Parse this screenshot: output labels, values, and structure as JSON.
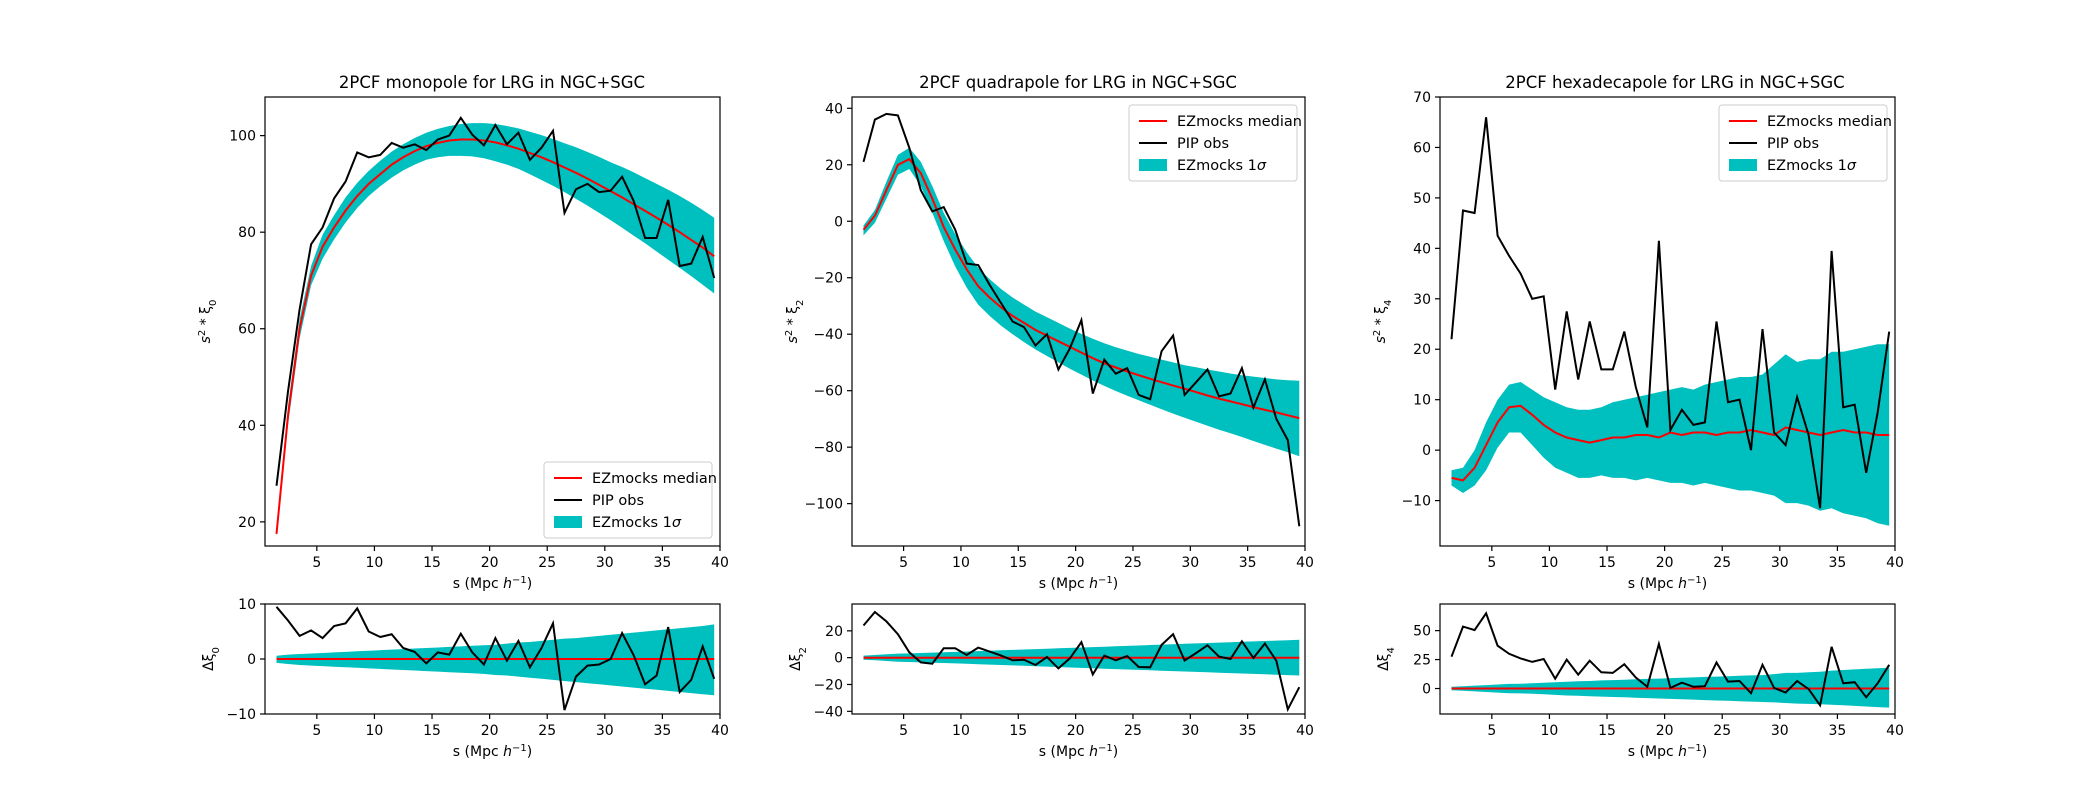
{
  "colors": {
    "median": "#ff0000",
    "obs": "#000000",
    "band": "#00bfbf"
  },
  "legend": {
    "median": "EZmocks median",
    "obs": "PIP obs",
    "band_prefix": "EZmocks 1",
    "band_sigma": "σ"
  },
  "xlabel_prefix": "s (Mpc ",
  "xlabel_h": "h",
  "xlabel_exp": "−1",
  "xlabel_suffix": ")",
  "chart_data": [
    {
      "type": "line",
      "title": "2PCF monopole for LRG in NGC+SGC",
      "ylabel_main": "s",
      "ylabel_sup": "2",
      "ylabel_mid": " * ξ",
      "ylabel_sub": "0",
      "xlim": [
        0.5,
        40
      ],
      "ylim": [
        15,
        108
      ],
      "xticks": [
        5,
        10,
        15,
        20,
        25,
        30,
        35,
        40
      ],
      "yticks": [
        20,
        40,
        60,
        80,
        100
      ],
      "legend_position": "lower-right",
      "x": [
        1.5,
        2.5,
        3.5,
        4.5,
        5.5,
        6.5,
        7.5,
        8.5,
        9.5,
        10.5,
        11.5,
        12.5,
        13.5,
        14.5,
        15.5,
        16.5,
        17.5,
        18.5,
        19.5,
        20.5,
        21.5,
        22.5,
        23.5,
        24.5,
        25.5,
        26.5,
        27.5,
        28.5,
        29.5,
        30.5,
        31.5,
        32.5,
        33.5,
        34.5,
        35.5,
        36.5,
        37.5,
        38.5,
        39.5
      ],
      "median": [
        17.5,
        42,
        60,
        71,
        77,
        81,
        84.5,
        87.5,
        90,
        92,
        94,
        95.5,
        96.8,
        97.8,
        98.5,
        99,
        99.2,
        99.2,
        99,
        98.6,
        98,
        97.3,
        96.4,
        95.5,
        94.5,
        93.4,
        92.3,
        91.1,
        89.8,
        88.5,
        87.2,
        85.8,
        84.4,
        83,
        81.5,
        80,
        78.4,
        76.8,
        75
      ],
      "band_lo": [
        17,
        40,
        58,
        69,
        74.5,
        78.5,
        82,
        85,
        87.5,
        89.5,
        91.3,
        92.8,
        94,
        95,
        95.5,
        95.8,
        95.8,
        95.7,
        95.3,
        94.7,
        94,
        93.1,
        92,
        90.8,
        89.6,
        88.3,
        86.9,
        85.5,
        84,
        82.5,
        80.9,
        79.3,
        77.7,
        76,
        74.3,
        72.6,
        70.9,
        69.1,
        67.3
      ],
      "band_hi": [
        18,
        44,
        62,
        73,
        79.5,
        83.5,
        87.2,
        90.2,
        92.7,
        94.8,
        96.7,
        98.2,
        99.5,
        100.6,
        101.4,
        102,
        102.4,
        102.6,
        102.6,
        102.4,
        102,
        101.5,
        100.8,
        100.1,
        99.3,
        98.4,
        97.6,
        96.6,
        95.6,
        94.5,
        93.5,
        92.4,
        91.2,
        90,
        88.8,
        87.5,
        86.1,
        84.6,
        83
      ],
      "obs": [
        27.5,
        47,
        64,
        77.5,
        81,
        87,
        90.5,
        96.5,
        95.5,
        96,
        98.5,
        97.5,
        98.2,
        97,
        99.2,
        100,
        103.7,
        100.2,
        98,
        102.2,
        98.2,
        100.6,
        95,
        97.5,
        101,
        84,
        88.9,
        90,
        88.3,
        88.6,
        91.5,
        86.5,
        78.8,
        78.8,
        86.7,
        73,
        73.5,
        79,
        70.5
      ],
      "residual": {
        "ylabel_main": "Δξ",
        "ylabel_sub": "0",
        "ylim": [
          -10,
          10
        ],
        "yticks": [
          -10,
          0,
          10
        ],
        "median": [
          0,
          0,
          0,
          0,
          0,
          0,
          0,
          0,
          0,
          0,
          0,
          0,
          0,
          0,
          0,
          0,
          0,
          0,
          0,
          0,
          0,
          0,
          0,
          0,
          0,
          0,
          0,
          0,
          0,
          0,
          0,
          0,
          0,
          0,
          0,
          0,
          0,
          0,
          0
        ],
        "band_lo": [
          -0.7,
          -0.9,
          -1.1,
          -1.2,
          -1.3,
          -1.4,
          -1.5,
          -1.6,
          -1.7,
          -1.8,
          -1.9,
          -2,
          -2.1,
          -2.2,
          -2.3,
          -2.4,
          -2.5,
          -2.6,
          -2.7,
          -2.9,
          -3,
          -3.2,
          -3.4,
          -3.6,
          -3.8,
          -4,
          -4.2,
          -4.4,
          -4.6,
          -4.8,
          -5,
          -5.2,
          -5.4,
          -5.6,
          -5.8,
          -6,
          -6.2,
          -6.4,
          -6.6
        ],
        "band_hi": [
          0.6,
          0.8,
          0.9,
          1,
          1.1,
          1.2,
          1.3,
          1.4,
          1.5,
          1.6,
          1.7,
          1.8,
          1.9,
          2,
          2.1,
          2.2,
          2.3,
          2.4,
          2.5,
          2.6,
          2.8,
          3,
          3.1,
          3.3,
          3.5,
          3.7,
          3.8,
          4,
          4.2,
          4.4,
          4.6,
          4.8,
          5,
          5.2,
          5.4,
          5.6,
          5.8,
          6,
          6.3
        ],
        "obs": [
          9.5,
          7,
          4.2,
          5.2,
          3.8,
          6,
          6.5,
          9.2,
          5,
          4,
          4.5,
          2,
          1.3,
          -0.8,
          1.2,
          0.8,
          4.6,
          1.2,
          -1,
          3.8,
          -0.3,
          3.3,
          -1.5,
          2,
          6.5,
          -9.3,
          -3.2,
          -1.2,
          -1,
          0,
          4.7,
          0.7,
          -4.6,
          -3,
          5.8,
          -6,
          -3.8,
          2.3,
          -3.6
        ]
      }
    },
    {
      "type": "line",
      "title": "2PCF quadrapole for LRG in NGC+SGC",
      "ylabel_main": "s",
      "ylabel_sup": "2",
      "ylabel_mid": " * ξ",
      "ylabel_sub": "2",
      "xlim": [
        0.5,
        40
      ],
      "ylim": [
        -115,
        44
      ],
      "xticks": [
        5,
        10,
        15,
        20,
        25,
        30,
        35,
        40
      ],
      "yticks": [
        -100,
        -80,
        -60,
        -40,
        -20,
        0,
        20,
        40
      ],
      "legend_position": "upper-right",
      "x": [
        1.5,
        2.5,
        3.5,
        4.5,
        5.5,
        6.5,
        7.5,
        8.5,
        9.5,
        10.5,
        11.5,
        12.5,
        13.5,
        14.5,
        15.5,
        16.5,
        17.5,
        18.5,
        19.5,
        20.5,
        21.5,
        22.5,
        23.5,
        24.5,
        25.5,
        26.5,
        27.5,
        28.5,
        29.5,
        30.5,
        31.5,
        32.5,
        33.5,
        34.5,
        35.5,
        36.5,
        37.5,
        38.5,
        39.5
      ],
      "median": [
        -3,
        2,
        11,
        20,
        22,
        17,
        8,
        -2,
        -10,
        -17,
        -23,
        -27,
        -30.5,
        -33.5,
        -36,
        -38.5,
        -40.5,
        -42.5,
        -44.5,
        -46.5,
        -48.5,
        -50.3,
        -51.8,
        -53.2,
        -54.5,
        -55.8,
        -57,
        -58.2,
        -59.3,
        -60.5,
        -61.7,
        -62.8,
        -63.8,
        -64.8,
        -65.8,
        -66.8,
        -67.7,
        -68.7,
        -69.7
      ],
      "band_lo": [
        -5,
        -0.5,
        8,
        16.5,
        18.5,
        12.5,
        3,
        -7,
        -16,
        -23.5,
        -29.5,
        -33.5,
        -37,
        -40,
        -42.8,
        -45.4,
        -47.7,
        -50,
        -52.2,
        -54.3,
        -56.4,
        -58.3,
        -60.1,
        -61.8,
        -63.4,
        -65,
        -66.6,
        -68.1,
        -69.6,
        -71,
        -72.4,
        -73.8,
        -75.1,
        -76.4,
        -77.8,
        -79.2,
        -80.5,
        -81.8,
        -83.2
      ],
      "band_hi": [
        -1.5,
        4,
        14,
        23.5,
        26,
        21,
        12.5,
        3,
        -4.5,
        -11,
        -16.5,
        -20.5,
        -24,
        -27,
        -29.5,
        -32,
        -34,
        -36,
        -38,
        -39.9,
        -41.6,
        -43.2,
        -44.6,
        -45.8,
        -47,
        -48,
        -49,
        -50,
        -51,
        -51.7,
        -52.5,
        -53.2,
        -53.9,
        -54.5,
        -55,
        -55.5,
        -56,
        -56.3,
        -56.5
      ],
      "obs": [
        21,
        36,
        38,
        37.5,
        26,
        11,
        3.5,
        5,
        -3,
        -15,
        -15.5,
        -22.5,
        -29,
        -35.5,
        -37.5,
        -44,
        -40,
        -52.5,
        -45,
        -35,
        -61,
        -49,
        -54,
        -52,
        -61.5,
        -63,
        -46,
        -40.5,
        -61.5,
        -57,
        -52.5,
        -62,
        -61,
        -52,
        -66,
        -56,
        -70,
        -77.5,
        -108
      ]
    },
    {
      "type": "line",
      "title": "2PCF hexadecapole for LRG in NGC+SGC",
      "ylabel_main": "s",
      "ylabel_sup": "2",
      "ylabel_mid": " * ξ",
      "ylabel_sub": "4",
      "xlim": [
        0.5,
        40
      ],
      "ylim": [
        -19,
        70
      ],
      "xticks": [
        5,
        10,
        15,
        20,
        25,
        30,
        35,
        40
      ],
      "yticks": [
        -10,
        0,
        10,
        20,
        30,
        40,
        50,
        60,
        70
      ],
      "legend_position": "upper-right",
      "x": [
        1.5,
        2.5,
        3.5,
        4.5,
        5.5,
        6.5,
        7.5,
        8.5,
        9.5,
        10.5,
        11.5,
        12.5,
        13.5,
        14.5,
        15.5,
        16.5,
        17.5,
        18.5,
        19.5,
        20.5,
        21.5,
        22.5,
        23.5,
        24.5,
        25.5,
        26.5,
        27.5,
        28.5,
        29.5,
        30.5,
        31.5,
        32.5,
        33.5,
        34.5,
        35.5,
        36.5,
        37.5,
        38.5,
        39.5
      ],
      "median": [
        -5.5,
        -6,
        -3.5,
        1,
        5.5,
        8.5,
        8.8,
        7,
        5,
        3.5,
        2.5,
        2,
        1.5,
        2,
        2.5,
        2.5,
        3,
        3,
        2.5,
        3.5,
        3,
        3.5,
        3.5,
        3,
        3.5,
        3.5,
        4,
        3.5,
        3,
        4.5,
        4,
        3.5,
        3,
        3.5,
        4,
        3.5,
        3.5,
        3,
        3
      ],
      "band_lo": [
        -7,
        -8.5,
        -7,
        -4,
        0.5,
        3.5,
        3.5,
        1,
        -1.5,
        -3.5,
        -4.5,
        -5.5,
        -5.5,
        -5,
        -5.5,
        -5.5,
        -6,
        -5.5,
        -6,
        -6.5,
        -6.5,
        -7,
        -6.5,
        -7,
        -7.5,
        -8,
        -8,
        -8.5,
        -9,
        -10.5,
        -10.5,
        -11,
        -12,
        -11.5,
        -12.5,
        -13,
        -13.5,
        -14.5,
        -15
      ],
      "band_hi": [
        -4,
        -3.5,
        0,
        5.5,
        10,
        13,
        13.5,
        12,
        10.5,
        9.5,
        8.5,
        8,
        8,
        8.5,
        9.5,
        10,
        10.5,
        11,
        11.5,
        12,
        12.5,
        12,
        13,
        13.5,
        14,
        14.5,
        14.5,
        15,
        17,
        19,
        17.5,
        18,
        18,
        19.5,
        19.5,
        20,
        20.5,
        21,
        21
      ],
      "obs": [
        22,
        47.5,
        47,
        66,
        42.5,
        38.5,
        35,
        30,
        30.5,
        12,
        27.5,
        14,
        25.5,
        16,
        16,
        23.5,
        12.5,
        4.5,
        41.5,
        4,
        8,
        5,
        5.5,
        25.5,
        9.5,
        10,
        0,
        24,
        3.5,
        1,
        10.5,
        3,
        -11.5,
        39.5,
        8.5,
        9,
        -4.5,
        7.5,
        23.5
      ],
      "residual": {
        "ylabel_main": "Δξ",
        "ylabel_sub": "4",
        "ylim": [
          -22,
          73
        ],
        "yticks": [
          0,
          25,
          50
        ],
        "median": [
          0,
          0,
          0,
          0,
          0,
          0,
          0,
          0,
          0,
          0,
          0,
          0,
          0,
          0,
          0,
          0,
          0,
          0,
          0,
          0,
          0,
          0,
          0,
          0,
          0,
          0,
          0,
          0,
          0,
          0,
          0,
          0,
          0,
          0,
          0,
          0,
          0,
          0,
          0
        ],
        "band_lo": [
          -1.5,
          -2,
          -2.5,
          -3,
          -3.5,
          -4,
          -4.2,
          -4.5,
          -5,
          -5.5,
          -6,
          -6.3,
          -6.6,
          -7,
          -7.3,
          -7.6,
          -8,
          -8.3,
          -8.6,
          -9,
          -9.3,
          -9.6,
          -10,
          -10.3,
          -10.6,
          -11,
          -11.3,
          -11.6,
          -12,
          -12.5,
          -13,
          -13.3,
          -13.6,
          -14,
          -14.5,
          -15,
          -15.5,
          -16,
          -16.5
        ],
        "band_hi": [
          1.5,
          2,
          2.5,
          3,
          3.5,
          4,
          4.2,
          4.5,
          5,
          5.5,
          5.8,
          6.2,
          6.5,
          7,
          7.3,
          7.6,
          8,
          8.3,
          8.6,
          9,
          9.3,
          9.6,
          10,
          10.3,
          10.6,
          11,
          11.3,
          11.6,
          12.5,
          13.5,
          13.5,
          14,
          14.5,
          15.5,
          16,
          16.5,
          17,
          17.5,
          18
        ],
        "obs": [
          27.5,
          53.5,
          50.5,
          65,
          37,
          30,
          26,
          23,
          25.5,
          8.5,
          25,
          12,
          24,
          14,
          13.5,
          21,
          9.5,
          1.5,
          38.5,
          0.5,
          5,
          1.5,
          2,
          22.5,
          6,
          6.5,
          -4,
          20.5,
          0.5,
          -3.5,
          6.5,
          -0.5,
          -14.5,
          36,
          4.5,
          5.5,
          -7.5,
          4.5,
          20.5
        ]
      }
    }
  ],
  "residual_quad": {
    "ylabel_main": "Δξ",
    "ylabel_sub": "2",
    "ylim": [
      -42,
      40
    ],
    "yticks": [
      -40,
      -20,
      0,
      20
    ],
    "median": [
      0,
      0,
      0,
      0,
      0,
      0,
      0,
      0,
      0,
      0,
      0,
      0,
      0,
      0,
      0,
      0,
      0,
      0,
      0,
      0,
      0,
      0,
      0,
      0,
      0,
      0,
      0,
      0,
      0,
      0,
      0,
      0,
      0,
      0,
      0,
      0,
      0,
      0,
      0
    ],
    "band_lo": [
      -1.5,
      -2,
      -2.5,
      -3,
      -3.2,
      -3.5,
      -3.8,
      -4,
      -4.3,
      -4.6,
      -4.9,
      -5.2,
      -5.5,
      -5.8,
      -6.1,
      -6.4,
      -6.7,
      -7,
      -7.3,
      -7.6,
      -7.9,
      -8.2,
      -8.5,
      -8.8,
      -9.1,
      -9.4,
      -9.7,
      -10,
      -10.3,
      -10.6,
      -10.9,
      -11.2,
      -11.5,
      -11.8,
      -12.1,
      -12.4,
      -12.7,
      -13,
      -13.3
    ],
    "band_hi": [
      1.5,
      2,
      2.5,
      3,
      3.2,
      3.5,
      3.8,
      4,
      4.3,
      4.6,
      4.9,
      5.2,
      5.5,
      5.8,
      6.1,
      6.4,
      6.7,
      7,
      7.3,
      7.6,
      7.9,
      8.2,
      8.5,
      8.8,
      9.1,
      9.4,
      9.7,
      10,
      10.3,
      10.6,
      10.9,
      11.2,
      11.5,
      11.8,
      12.1,
      12.4,
      12.7,
      13,
      13.3
    ],
    "obs": [
      24,
      34,
      27,
      17.5,
      4,
      -3.5,
      -4.5,
      7,
      7,
      2,
      7.5,
      4.5,
      1.5,
      -2,
      -1.5,
      -5.5,
      0.5,
      -8,
      -0.5,
      11.5,
      -12.5,
      1.5,
      -2,
      1.2,
      -7,
      -7.2,
      9.5,
      17.5,
      -2.1,
      3.4,
      9.2,
      0.8,
      -1,
      12.2,
      -0.2,
      10.5,
      -2.3,
      -38.5,
      -22
    ]
  }
}
